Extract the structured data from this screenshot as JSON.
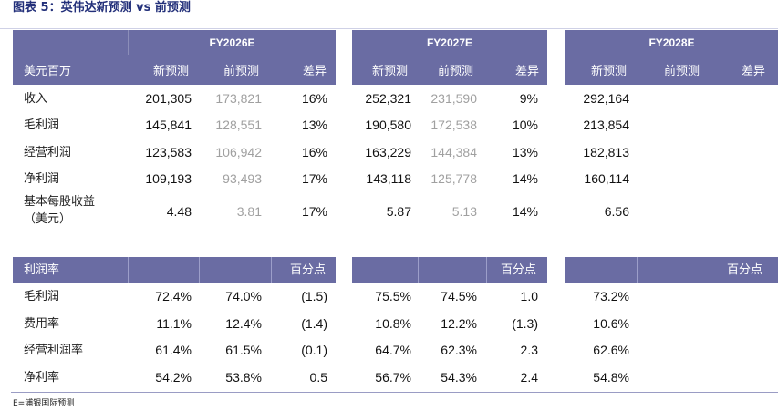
{
  "title": "图表 5：英伟达新预测 vs 前预测",
  "source": "E=浦银国际预测",
  "years": [
    "FY2026E",
    "FY2027E",
    "FY2028E"
  ],
  "upper": {
    "header_label": "美元百万",
    "columns": [
      "新预测",
      "前预测",
      "差异"
    ],
    "rows": [
      {
        "label": "收入",
        "v": [
          "201,305",
          "173,821",
          "16%",
          "252,321",
          "231,590",
          "9%",
          "292,164"
        ]
      },
      {
        "label": "毛利润",
        "v": [
          "145,841",
          "128,551",
          "13%",
          "190,580",
          "172,538",
          "10%",
          "213,854"
        ]
      },
      {
        "label": "经营利润",
        "v": [
          "123,583",
          "106,942",
          "16%",
          "163,229",
          "144,384",
          "13%",
          "182,813"
        ]
      },
      {
        "label": "净利润",
        "v": [
          "109,193",
          "93,493",
          "17%",
          "143,118",
          "125,778",
          "14%",
          "160,114"
        ]
      },
      {
        "label": "基本每股收益",
        "label2": "（美元）",
        "v": [
          "4.48",
          "3.81",
          "17%",
          "5.87",
          "5.13",
          "14%",
          "6.56"
        ]
      }
    ]
  },
  "lower": {
    "header_label": "利润率",
    "unit": "百分点",
    "rows": [
      {
        "label": "毛利润",
        "v": [
          "72.4%",
          "74.0%",
          "(1.5)",
          "75.5%",
          "74.5%",
          "1.0",
          "73.2%"
        ]
      },
      {
        "label": "费用率",
        "v": [
          "11.1%",
          "12.4%",
          "(1.4)",
          "10.8%",
          "12.2%",
          "(1.3)",
          "10.6%"
        ]
      },
      {
        "label": "经营利润率",
        "v": [
          "61.4%",
          "61.5%",
          "(0.1)",
          "64.7%",
          "62.3%",
          "2.3",
          "62.6%"
        ]
      },
      {
        "label": "净利率",
        "v": [
          "54.2%",
          "53.8%",
          "0.5",
          "56.7%",
          "54.3%",
          "2.4",
          "54.8%"
        ]
      }
    ]
  },
  "colors": {
    "header_bg": "#6a6ca3",
    "title": "#23307a",
    "muted": "#a0a0a0"
  }
}
